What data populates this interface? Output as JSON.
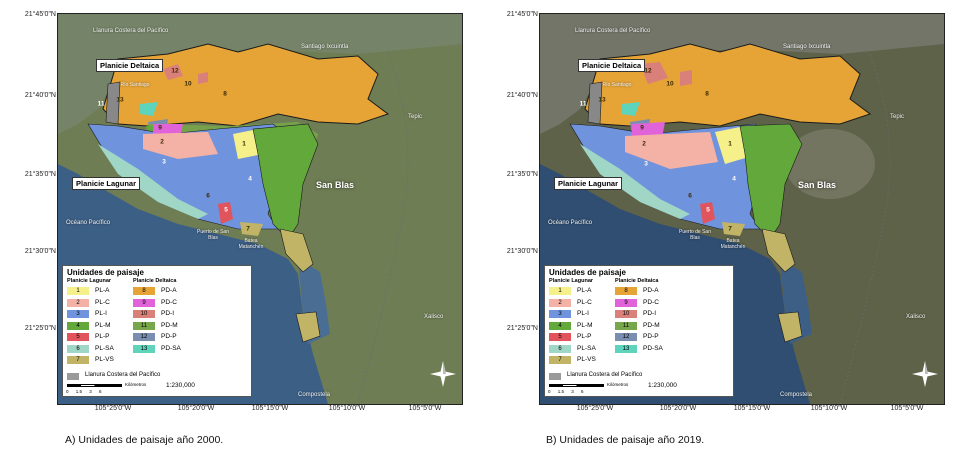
{
  "coords": {
    "lat": [
      "21°45'0\"N",
      "21°40'0\"N",
      "21°35'0\"N",
      "21°30'0\"N",
      "21°25'0\"N"
    ],
    "lon": [
      "105°25'0\"W",
      "105°20'0\"W",
      "105°15'0\"W",
      "105°10'0\"W",
      "105°5'0\"W"
    ]
  },
  "places": {
    "llanura": "Llanura Costera del Pacífico",
    "santiago": "Santiago Ixcuintla",
    "rio": "Río Santiago",
    "tepic": "Tepic",
    "oceano": "Océano Pacífico",
    "puerto": "Puerto de San Blas",
    "batea": "Batea Matanchén",
    "xalisco": "Xalisco",
    "compostela": "Compostela",
    "sanblas": "San Blas"
  },
  "regions": {
    "deltaica": "Planicie Deltaica",
    "lagunar": "Planicie Lagunar"
  },
  "legend": {
    "title": "Unidades de paisaje",
    "col_lagunar": "Planicie Lagunar",
    "col_deltaica": "Planicie Deltaica",
    "lagunar": [
      {
        "num": "1",
        "label": "PL-A",
        "color": "#f6f08a"
      },
      {
        "num": "2",
        "label": "PL-C",
        "color": "#f4b1a6"
      },
      {
        "num": "3",
        "label": "PL-I",
        "color": "#6f93dd"
      },
      {
        "num": "4",
        "label": "PL-M",
        "color": "#62a83a"
      },
      {
        "num": "5",
        "label": "PL-P",
        "color": "#e2545b"
      },
      {
        "num": "6",
        "label": "PL-SA",
        "color": "#9fd6c6"
      },
      {
        "num": "7",
        "label": "PL-VS",
        "color": "#c2b466"
      }
    ],
    "deltaica": [
      {
        "num": "8",
        "label": "PD-A",
        "color": "#e6a436"
      },
      {
        "num": "9",
        "label": "PD-C",
        "color": "#e063d9"
      },
      {
        "num": "10",
        "label": "PD-I",
        "color": "#d9807a"
      },
      {
        "num": "11",
        "label": "PD-M",
        "color": "#78a64a"
      },
      {
        "num": "12",
        "label": "PD-P",
        "color": "#7a8fb0"
      },
      {
        "num": "13",
        "label": "PD-SA",
        "color": "#5fd4bd"
      }
    ],
    "other_label": "Llanura Costera del Pacífico",
    "scale_unit": "Kilómetros",
    "scale_ticks": "0 1.5 3 6",
    "scale_ratio": "1:230,000"
  },
  "unit_labels": [
    "12",
    "10",
    "8",
    "11",
    "13",
    "9",
    "2",
    "3",
    "1",
    "4",
    "5",
    "7",
    "6"
  ],
  "captions": {
    "a": "A) Unidades de paisaje año 2000.",
    "b": "B) Unidades de paisaje año 2019."
  },
  "colors": {
    "land_2000": "#6f7d55",
    "land_2019": "#5e6248",
    "ocean": "#3c5f86",
    "outline": "#1a1a1a"
  }
}
